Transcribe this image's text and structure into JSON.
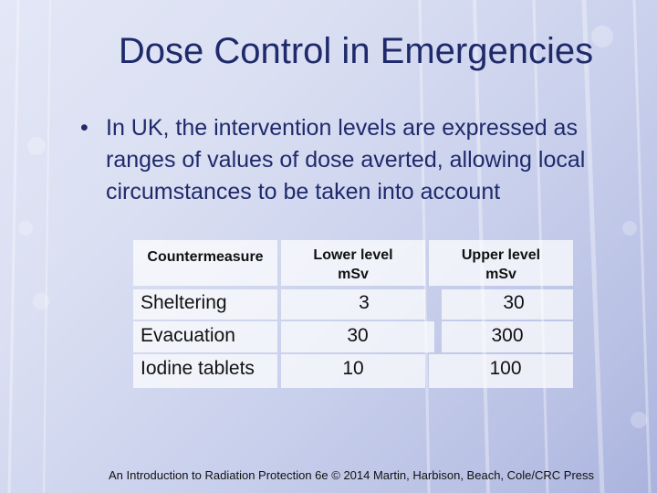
{
  "slide": {
    "title": "Dose Control in Emergencies",
    "bullet": "In UK, the intervention levels are expressed as ranges of values of dose averted, allowing local circumstances to be taken into account",
    "footer": "An Introduction to Radiation Protection 6e © 2014 Martin, Harbison, Beach, Cole/CRC Press"
  },
  "table": {
    "headers": [
      "Countermeasure",
      "Lower level mSv",
      "Upper level mSv"
    ],
    "rows": [
      [
        "Sheltering",
        "3",
        "30"
      ],
      [
        "Evacuation",
        "30",
        "300"
      ],
      [
        "Iodine tablets",
        "10",
        "100"
      ]
    ]
  },
  "colors": {
    "title": "#1f2a6b",
    "background": "#d4d9f0",
    "cell_background": "#ffffff"
  }
}
